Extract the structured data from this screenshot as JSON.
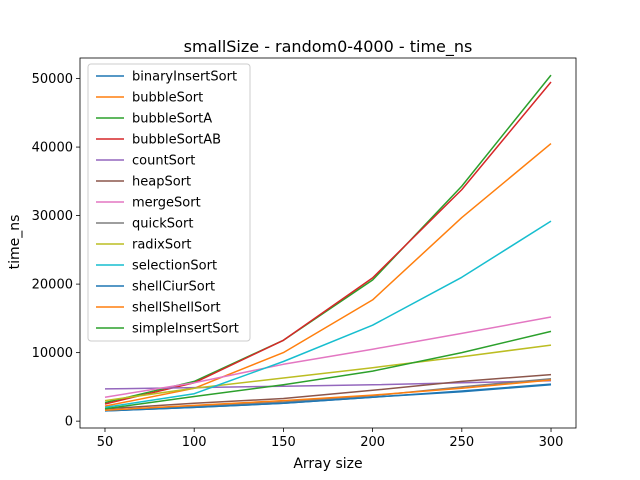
{
  "chart_data": {
    "type": "line",
    "title": "smallSize - random0-4000 - time_ns",
    "xlabel": "Array size",
    "ylabel": "time_ns",
    "x": [
      50,
      100,
      150,
      200,
      250,
      300
    ],
    "xlim": [
      36,
      314
    ],
    "ylim": [
      -1000,
      53000
    ],
    "xticks": [
      50,
      100,
      150,
      200,
      250,
      300
    ],
    "yticks": [
      0,
      10000,
      20000,
      30000,
      40000,
      50000
    ],
    "grid": false,
    "legend_position": "upper-left",
    "series": [
      {
        "name": "binaryInsertSort",
        "color": "#1f77b4",
        "values": [
          1500,
          2000,
          2600,
          3500,
          4400,
          5400
        ]
      },
      {
        "name": "bubbleSort",
        "color": "#ff7f0e",
        "values": [
          2200,
          4800,
          10000,
          17700,
          29700,
          40500
        ]
      },
      {
        "name": "bubbleSortA",
        "color": "#2ca02c",
        "values": [
          2700,
          5800,
          11800,
          20600,
          34300,
          50500
        ]
      },
      {
        "name": "bubbleSortAB",
        "color": "#d62728",
        "values": [
          2500,
          5600,
          11800,
          20900,
          33800,
          49500
        ]
      },
      {
        "name": "countSort",
        "color": "#9467bd",
        "values": [
          4700,
          4900,
          5100,
          5300,
          5600,
          5900
        ]
      },
      {
        "name": "heapSort",
        "color": "#8c564b",
        "values": [
          1800,
          2600,
          3300,
          4500,
          5800,
          6800
        ]
      },
      {
        "name": "mergeSort",
        "color": "#e377c2",
        "values": [
          3500,
          5600,
          8300,
          10500,
          12800,
          15200
        ]
      },
      {
        "name": "quickSort",
        "color": "#7f7f7f",
        "values": [
          1600,
          2200,
          2800,
          3700,
          5000,
          6200
        ]
      },
      {
        "name": "radixSort",
        "color": "#bcbd22",
        "values": [
          3000,
          4800,
          6300,
          7800,
          9400,
          11100
        ]
      },
      {
        "name": "selectionSort",
        "color": "#17becf",
        "values": [
          2000,
          4000,
          8700,
          14000,
          21000,
          29200
        ]
      },
      {
        "name": "shellCiurSort",
        "color": "#1f77b4",
        "values": [
          1500,
          2000,
          2600,
          3500,
          4300,
          5300
        ]
      },
      {
        "name": "shellShellSort",
        "color": "#ff7f0e",
        "values": [
          1600,
          2300,
          3000,
          3800,
          4800,
          6000
        ]
      },
      {
        "name": "simpleInsertSort",
        "color": "#2ca02c",
        "values": [
          1800,
          3600,
          5300,
          7300,
          10000,
          13100
        ]
      }
    ]
  }
}
